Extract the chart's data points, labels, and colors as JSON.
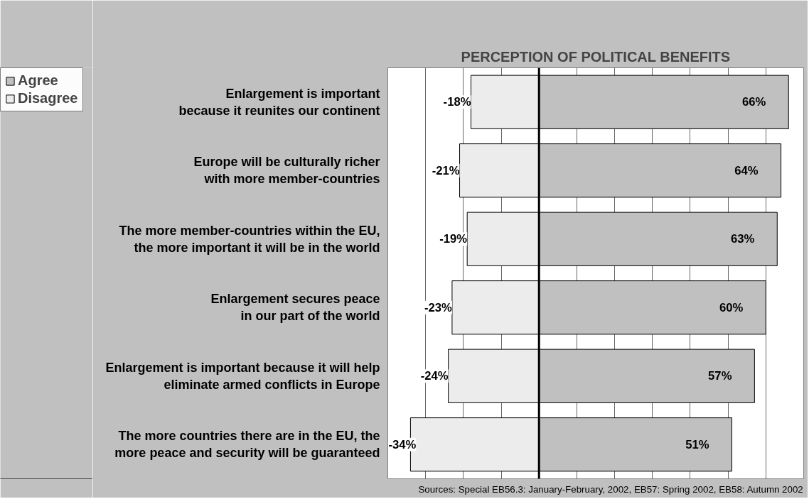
{
  "chart_data": {
    "type": "bar",
    "orientation": "horizontal",
    "stacked": true,
    "title": "PERCEPTION OF POLITICAL BENEFITS",
    "categories": [
      "Enlargement is important\nbecause it reunites our continent",
      "Europe will be culturally richer\nwith more member-countries",
      "The more member-countries within the EU,\nthe more important it will be in the world",
      "Enlargement secures peace\nin our part of the world",
      "Enlargement is important because it will help\neliminate armed conflicts in Europe",
      "The more countries there are in the EU, the\nmore peace and security will be guaranteed"
    ],
    "series": [
      {
        "name": "Agree",
        "color": "#c0c0c0",
        "values": [
          66,
          64,
          63,
          60,
          57,
          51
        ],
        "value_labels": [
          "66%",
          "64%",
          "63%",
          "60%",
          "57%",
          "51%"
        ]
      },
      {
        "name": "Disagree",
        "color": "#ececec",
        "values": [
          -18,
          -21,
          -19,
          -23,
          -24,
          -34
        ],
        "value_labels": [
          "-18%",
          "-21%",
          "-19%",
          "-23%",
          "-24%",
          "-34%"
        ]
      }
    ],
    "xlim": [
      -40,
      70
    ],
    "xticks": [
      {
        "value": -40,
        "label": null
      },
      {
        "value": -30,
        "label": null
      },
      {
        "value": -20,
        "label": null
      },
      {
        "value": -10,
        "label": null
      },
      {
        "value": 0,
        "label": null
      },
      {
        "value": 10,
        "label": null
      },
      {
        "value": 20,
        "label": null
      },
      {
        "value": 30,
        "label": null
      },
      {
        "value": 40,
        "label": null
      },
      {
        "value": 50,
        "label": null
      },
      {
        "value": 60,
        "label": null
      },
      {
        "value": 70,
        "label": null
      }
    ],
    "tick_labels": false,
    "grid": "x",
    "legend": "top left",
    "ref_lines": [
      {
        "axis": "x",
        "value": 0,
        "color": "#000000"
      }
    ],
    "annotations": [
      "Sources: Special EB56.3: January-February, 2002, EB57: Spring 2002, EB58: Autumn 2002"
    ]
  }
}
